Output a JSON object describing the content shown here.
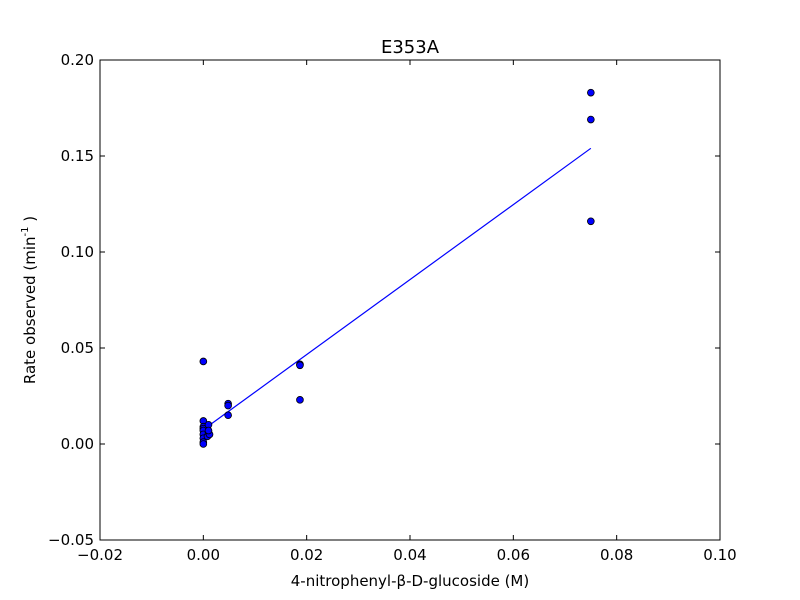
{
  "chart_data": {
    "type": "scatter",
    "title": "E353A",
    "xlabel": "4-nitrophenyl-β-D-glucoside (M)",
    "ylabel": {
      "prefix": "Rate observed (min",
      "superscript": "-1",
      "suffix": " )"
    },
    "xlim": [
      -0.02,
      0.1
    ],
    "ylim": [
      -0.05,
      0.2
    ],
    "x_ticks": [
      -0.02,
      0.0,
      0.02,
      0.04,
      0.06,
      0.08,
      0.1
    ],
    "x_tick_labels": [
      "−0.02",
      "0.00",
      "0.02",
      "0.04",
      "0.06",
      "0.08",
      "0.10"
    ],
    "y_ticks": [
      -0.05,
      0.0,
      0.05,
      0.1,
      0.15,
      0.2
    ],
    "y_tick_labels": [
      "−0.05",
      "0.00",
      "0.05",
      "0.10",
      "0.15",
      "0.20"
    ],
    "grid": false,
    "points": {
      "color": "#0000ff",
      "edge_color": "#000000",
      "x": [
        0.0,
        0.0,
        0.0,
        0.0,
        0.0,
        0.0,
        0.0,
        0.0,
        0.0,
        0.0008,
        0.001,
        0.001,
        0.0012,
        0.001,
        0.0048,
        0.0048,
        0.0048,
        0.0187,
        0.0187,
        0.0187,
        0.075,
        0.075,
        0.075
      ],
      "y": [
        0.043,
        0.012,
        0.009,
        0.008,
        0.007,
        0.005,
        0.003,
        0.001,
        0.0,
        0.004,
        0.01,
        0.006,
        0.005,
        0.007,
        0.021,
        0.02,
        0.015,
        0.0415,
        0.041,
        0.023,
        0.183,
        0.169,
        0.116
      ]
    },
    "fit_line": {
      "color": "#0000ff",
      "x": [
        0.0,
        0.075
      ],
      "y": [
        0.0075,
        0.154
      ]
    }
  }
}
